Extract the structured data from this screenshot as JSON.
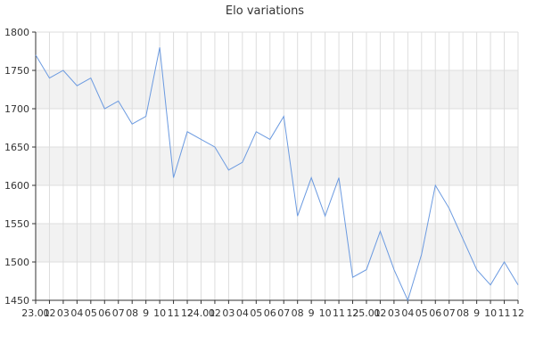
{
  "chart_data": {
    "type": "line",
    "title": "Elo variations",
    "xlabel": "",
    "ylabel": "",
    "ylim": [
      1450,
      1800
    ],
    "yticks": [
      1450,
      1500,
      1550,
      1600,
      1650,
      1700,
      1750,
      1800
    ],
    "grid": true,
    "x": [
      "23.01",
      "02",
      "03",
      "04",
      "05",
      "06",
      "07",
      "08",
      "09",
      "10",
      "11",
      "12",
      "24.01",
      "02",
      "03",
      "04",
      "05",
      "06",
      "07",
      "08",
      "09",
      "10",
      "11",
      "12",
      "25.01",
      "02",
      "03",
      "04",
      "05",
      "06",
      "07",
      "08",
      "09",
      "10",
      "11",
      "12"
    ],
    "x_tick_labels": [
      "23.01",
      "02",
      "03",
      "04",
      "05",
      "06",
      "07",
      "08",
      "9",
      "10",
      "11",
      "12",
      "24.01",
      "02",
      "03",
      "04",
      "05",
      "06",
      "07",
      "08",
      "9",
      "10",
      "11",
      "12",
      "25.01",
      "02",
      "03",
      "04",
      "05",
      "06",
      "07",
      "08",
      "9",
      "10",
      "11",
      "12"
    ],
    "series": [
      {
        "values": [
          1770,
          1740,
          1750,
          1730,
          1740,
          1700,
          1710,
          1680,
          1690,
          1780,
          1610,
          1670,
          1660,
          1650,
          1620,
          1630,
          1670,
          1660,
          1690,
          1560,
          1610,
          1560,
          1610,
          1480,
          1490,
          1540,
          1490,
          1450,
          1510,
          1600,
          1570,
          1530,
          1490,
          1470,
          1500,
          1470
        ],
        "color": "#6b9ae0"
      }
    ],
    "band_color": "#f2f2f2",
    "grid_color": "#dddddd",
    "axis_color": "#333333"
  }
}
